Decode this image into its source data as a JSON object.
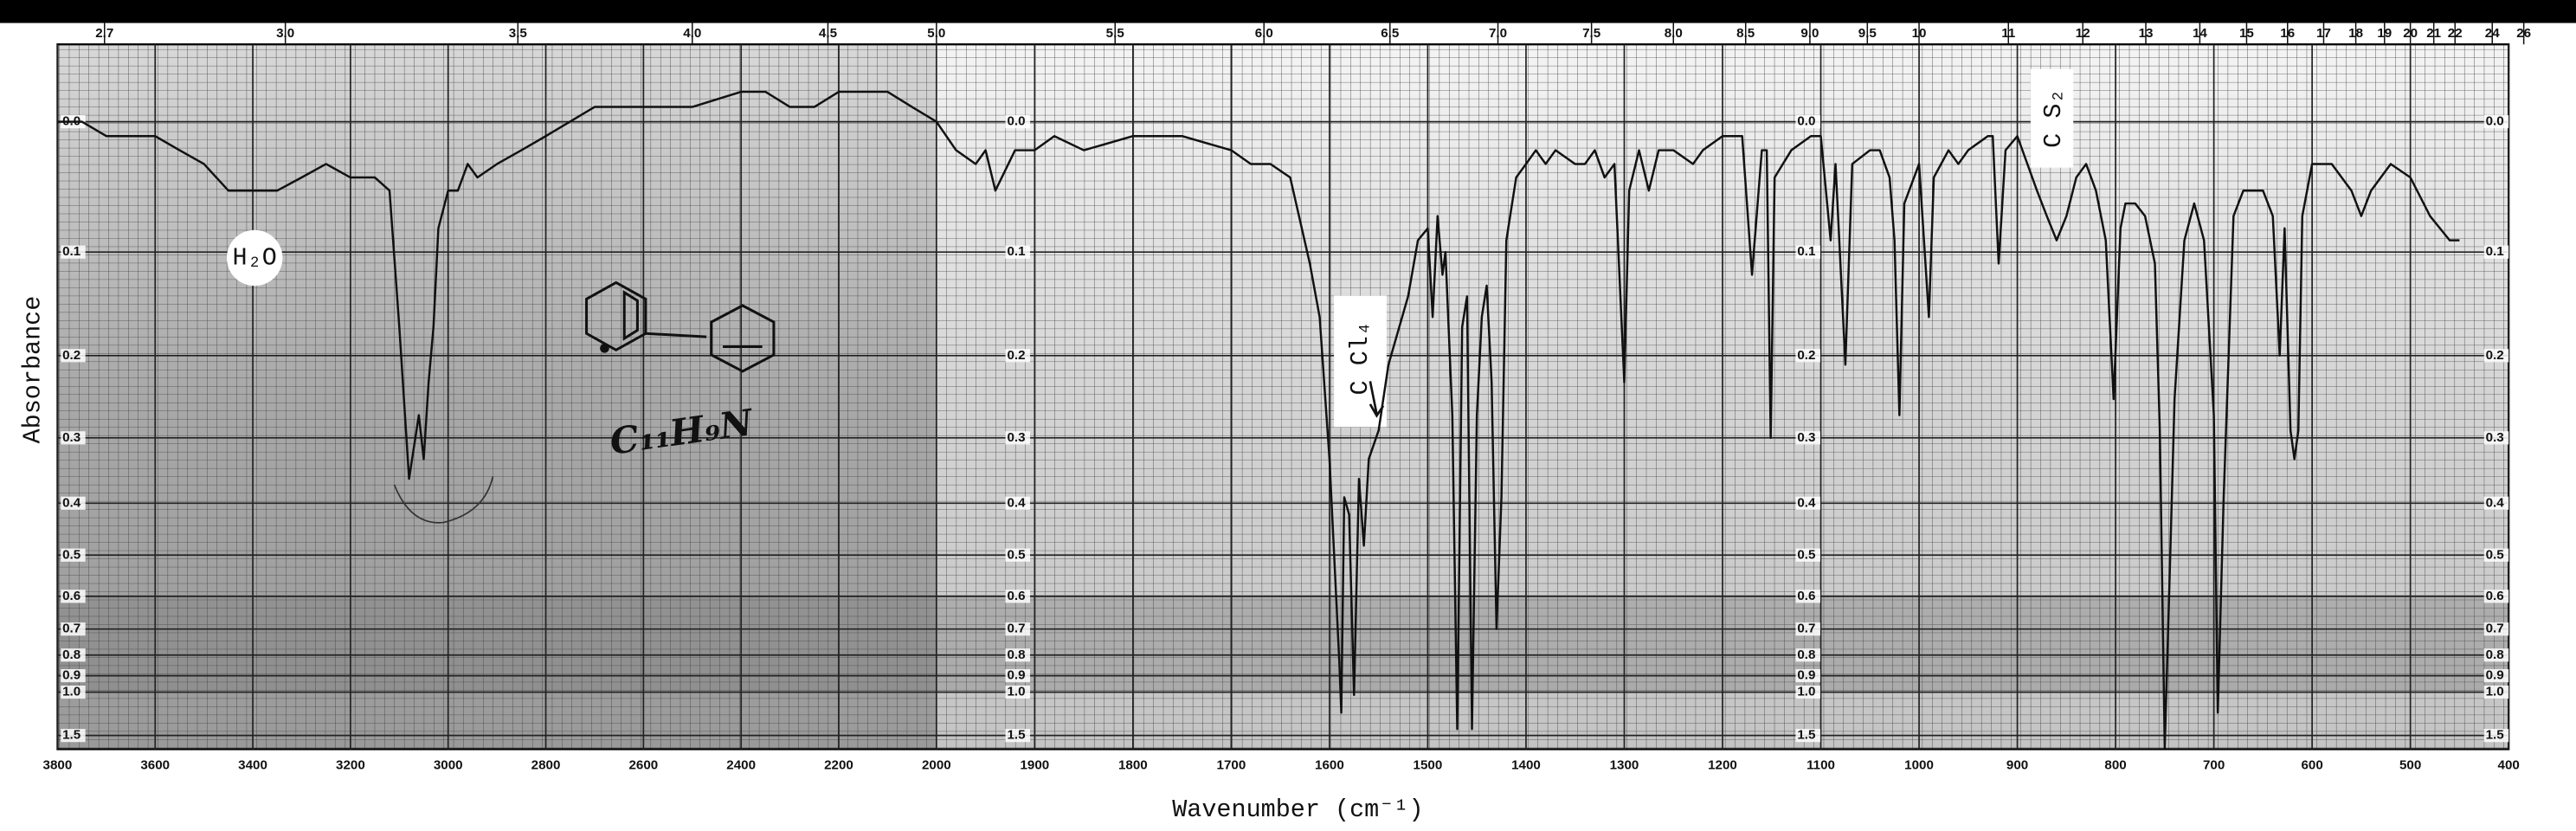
{
  "chart_data": {
    "type": "line",
    "xlabel": "Wavenumber (cm⁻¹)",
    "ylabel": "Absorbance",
    "xlim": [
      3800,
      400
    ],
    "xbreak": 2000,
    "xticks": [
      3800,
      3600,
      3400,
      3200,
      3000,
      2800,
      2600,
      2400,
      2200,
      2000,
      1900,
      1800,
      1700,
      1600,
      1500,
      1400,
      1300,
      1200,
      1100,
      1000,
      900,
      800,
      700,
      600,
      500,
      400
    ],
    "x2scale": "micrometers",
    "x2ticks": [
      2.7,
      {
        "value": 3,
        "label": "3.0"
      },
      3.5,
      {
        "value": 4,
        "label": "4.0"
      },
      4.5,
      {
        "value": 5,
        "label": "5.0"
      },
      5.5,
      {
        "value": 6,
        "label": "6.0"
      },
      6.5,
      {
        "value": 7,
        "label": "7.0"
      },
      7.5,
      {
        "value": 8,
        "label": "8.0"
      },
      8.5,
      {
        "value": 9,
        "label": "9.0"
      },
      9.5,
      10,
      11,
      12,
      13,
      14,
      15,
      16,
      17,
      18,
      19,
      20,
      21,
      22,
      24,
      26
    ],
    "yscale": "transmittance",
    "ylim": [
      -0.05,
      2
    ],
    "yticks": [
      {
        "value": 0,
        "label": "0.0"
      },
      0.1,
      0.2,
      0.3,
      0.4,
      0.5,
      0.6,
      0.7,
      0.8,
      0.9,
      {
        "value": 1,
        "label": "1.0"
      },
      1.5
    ],
    "grid": true,
    "color": "#111111",
    "annotations": [
      "H₂O",
      "C Cl₄",
      "C S₂",
      "C₁₁H₉N"
    ],
    "x": [
      3800,
      3750,
      3700,
      3650,
      3600,
      3550,
      3500,
      3450,
      3400,
      3350,
      3300,
      3250,
      3200,
      3150,
      3120,
      3100,
      3080,
      3060,
      3050,
      3040,
      3030,
      3020,
      3000,
      2980,
      2960,
      2940,
      2900,
      2850,
      2800,
      2700,
      2600,
      2500,
      2400,
      2350,
      2300,
      2250,
      2200,
      2100,
      2050,
      2000,
      1980,
      1960,
      1950,
      1940,
      1920,
      1900,
      1880,
      1850,
      1800,
      1750,
      1700,
      1680,
      1660,
      1640,
      1620,
      1610,
      1600,
      1590,
      1588,
      1585,
      1580,
      1575,
      1570,
      1565,
      1560,
      1550,
      1540,
      1520,
      1510,
      1500,
      1495,
      1490,
      1485,
      1482,
      1475,
      1470,
      1465,
      1460,
      1455,
      1450,
      1445,
      1440,
      1435,
      1430,
      1425,
      1420,
      1410,
      1400,
      1390,
      1380,
      1370,
      1350,
      1340,
      1330,
      1320,
      1310,
      1300,
      1295,
      1285,
      1275,
      1265,
      1250,
      1230,
      1220,
      1200,
      1180,
      1170,
      1160,
      1155,
      1151,
      1147,
      1130,
      1110,
      1100,
      1090,
      1085,
      1075,
      1068,
      1050,
      1040,
      1030,
      1025,
      1020,
      1015,
      1000,
      990,
      985,
      970,
      960,
      950,
      930,
      925,
      919,
      912,
      900,
      880,
      870,
      860,
      850,
      840,
      830,
      820,
      810,
      802,
      795,
      790,
      780,
      770,
      760,
      755,
      750,
      745,
      740,
      730,
      720,
      710,
      700,
      696,
      690,
      680,
      670,
      660,
      650,
      640,
      633,
      628,
      622,
      618,
      614,
      610,
      600,
      580,
      560,
      550,
      540,
      520,
      500,
      480,
      460,
      450
    ],
    "values": [
      0.0,
      0.0,
      0.01,
      0.01,
      0.01,
      0.02,
      0.03,
      0.05,
      0.05,
      0.05,
      0.04,
      0.03,
      0.04,
      0.04,
      0.05,
      0.17,
      0.36,
      0.27,
      0.33,
      0.23,
      0.17,
      0.08,
      0.05,
      0.05,
      0.03,
      0.04,
      0.03,
      0.02,
      0.01,
      -0.01,
      -0.01,
      -0.01,
      -0.02,
      -0.02,
      -0.01,
      -0.01,
      -0.02,
      -0.02,
      -0.01,
      0.0,
      0.02,
      0.03,
      0.02,
      0.05,
      0.02,
      0.02,
      0.01,
      0.02,
      0.01,
      0.01,
      0.02,
      0.03,
      0.03,
      0.04,
      0.11,
      0.16,
      0.33,
      0.83,
      1.17,
      0.39,
      0.42,
      1.02,
      0.36,
      0.48,
      0.33,
      0.29,
      0.21,
      0.14,
      0.09,
      0.08,
      0.16,
      0.07,
      0.12,
      0.1,
      0.27,
      1.38,
      0.17,
      0.14,
      1.38,
      0.27,
      0.16,
      0.13,
      0.23,
      0.7,
      0.39,
      0.09,
      0.04,
      0.03,
      0.02,
      0.03,
      0.02,
      0.03,
      0.03,
      0.02,
      0.04,
      0.03,
      0.23,
      0.05,
      0.02,
      0.05,
      0.02,
      0.02,
      0.03,
      0.02,
      0.01,
      0.01,
      0.12,
      0.02,
      0.02,
      0.3,
      0.04,
      0.02,
      0.01,
      0.01,
      0.09,
      0.03,
      0.21,
      0.03,
      0.02,
      0.02,
      0.04,
      0.09,
      0.27,
      0.06,
      0.03,
      0.16,
      0.04,
      0.02,
      0.03,
      0.02,
      0.01,
      0.01,
      0.11,
      0.02,
      0.01,
      0.05,
      0.07,
      0.09,
      0.07,
      0.04,
      0.03,
      0.05,
      0.09,
      0.25,
      0.08,
      0.06,
      0.06,
      0.07,
      0.11,
      0.29,
      1.9,
      0.55,
      0.25,
      0.09,
      0.06,
      0.09,
      0.27,
      1.17,
      0.39,
      0.07,
      0.05,
      0.05,
      0.05,
      0.07,
      0.2,
      0.08,
      0.29,
      0.33,
      0.29,
      0.07,
      0.03,
      0.03,
      0.05,
      0.07,
      0.05,
      0.03,
      0.04,
      0.07,
      0.09,
      0.09
    ]
  }
}
